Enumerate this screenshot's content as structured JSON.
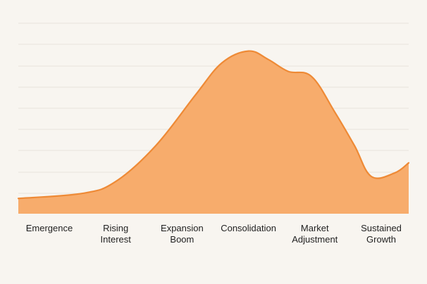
{
  "chart_data": {
    "type": "area",
    "title": "",
    "xlabel": "",
    "ylabel": "",
    "categories": [
      [
        "Emergence"
      ],
      [
        "Rising",
        "Interest"
      ],
      [
        "Expansion",
        "Boom"
      ],
      [
        "Consolidation"
      ],
      [
        "Market",
        "Adjustment"
      ],
      [
        "Sustained",
        "Growth"
      ]
    ],
    "ylim": [
      0,
      100
    ],
    "grid": true,
    "series": [
      {
        "values": [
          [
            0.0,
            9
          ],
          [
            0.5,
            12
          ],
          [
            1.0,
            19
          ],
          [
            1.6,
            40
          ],
          [
            2.2,
            70
          ],
          [
            2.6,
            89
          ],
          [
            3.0,
            96
          ],
          [
            3.3,
            91
          ],
          [
            3.6,
            84
          ],
          [
            3.95,
            81
          ],
          [
            4.3,
            60
          ],
          [
            4.6,
            40
          ],
          [
            4.85,
            22
          ],
          [
            5.2,
            24
          ],
          [
            5.5,
            30
          ]
        ]
      }
    ],
    "colors": {
      "fill": "#f7ac6c",
      "line": "#ee8a36",
      "grid": "#e9e4dc",
      "background": "#f8f5f0"
    }
  }
}
